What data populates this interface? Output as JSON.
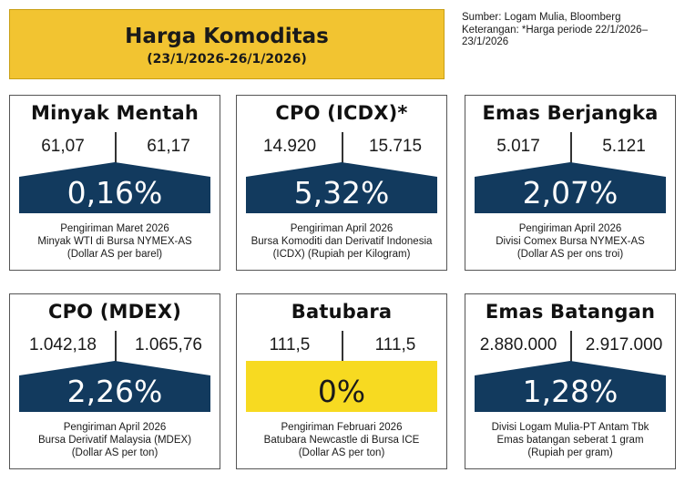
{
  "header": {
    "title": "Harga Komoditas",
    "period": "(23/1/2026-26/1/2026)"
  },
  "source": {
    "line1": "Sumber: Logam Mulia, Bloomberg",
    "line2": "Keterangan: *Harga periode 22/1/2026–",
    "line3": "23/1/2026"
  },
  "colors": {
    "header_bg": "#f2c431",
    "navy": "#123a5e",
    "yellow": "#f7da21"
  },
  "cards": [
    {
      "title": "Minyak Mentah",
      "left_value": "61,07",
      "right_value": "61,17",
      "change": "0,16%",
      "desc": [
        "Pengiriman Maret 2026",
        "Minyak WTI di Bursa NYMEX-AS",
        "(Dollar AS per barel)"
      ]
    },
    {
      "title": "CPO (ICDX)*",
      "left_value": "14.920",
      "right_value": "15.715",
      "change": "5,32%",
      "desc": [
        "Pengiriman April 2026",
        "Bursa Komoditi dan Derivatif Indonesia",
        "(ICDX) (Rupiah per Kilogram)"
      ]
    },
    {
      "title": "Emas Berjangka",
      "left_value": "5.017",
      "right_value": "5.121",
      "change": "2,07%",
      "desc": [
        "Pengiriman April 2026",
        "Divisi Comex Bursa NYMEX-AS",
        "(Dollar AS per ons troi)"
      ]
    },
    {
      "title": "CPO (MDEX)",
      "left_value": "1.042,18",
      "right_value": "1.065,76",
      "change": "2,26%",
      "desc": [
        "Pengiriman April 2026",
        "Bursa Derivatif Malaysia (MDEX)",
        "(Dollar AS per ton)"
      ]
    },
    {
      "title": "Batubara",
      "left_value": "111,5",
      "right_value": "111,5",
      "change": "0%",
      "desc": [
        "Pengiriman Februari 2026",
        "Batubara Newcastle di Bursa ICE",
        "(Dollar AS per ton)"
      ]
    },
    {
      "title": "Emas Batangan",
      "left_value": "2.880.000",
      "right_value": "2.917.000",
      "change": "1,28%",
      "desc": [
        "Divisi Logam Mulia-PT Antam Tbk",
        "Emas batangan seberat 1 gram",
        "(Rupiah per gram)"
      ]
    }
  ]
}
